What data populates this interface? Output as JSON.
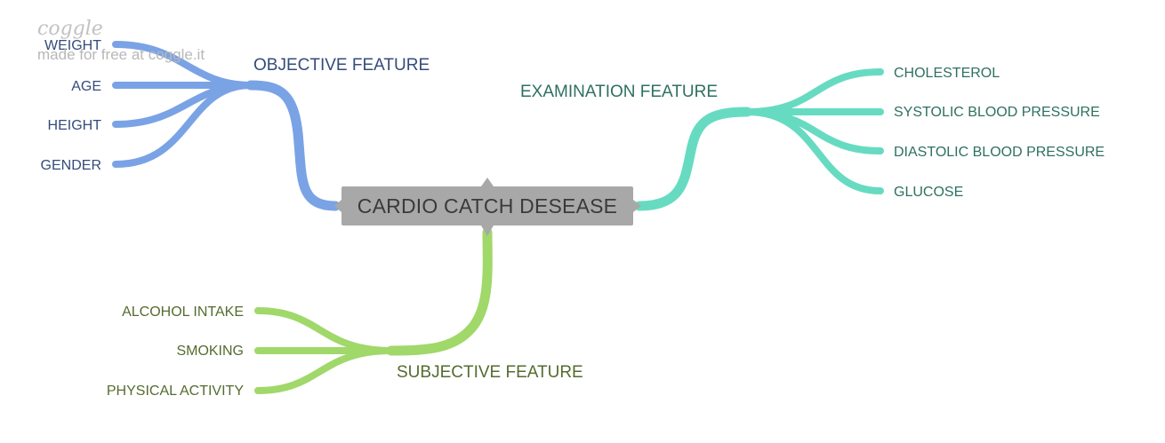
{
  "center": {
    "label": "CARDIO CATCH DESEASE"
  },
  "watermark": {
    "logo": "coggle",
    "text": "made for free at coggle.it"
  },
  "colors": {
    "objective": "#7aa3e5",
    "objective_text": "#344c7a",
    "examination": "#67dbc1",
    "examination_text": "#2e7060",
    "subjective": "#a0d86a",
    "subjective_text": "#556b2f",
    "center_bg": "#a8a8a8",
    "center_text": "#3a3a3a"
  },
  "branches": {
    "objective": {
      "label": "OBJECTIVE FEATURE",
      "children": [
        "WEIGHT",
        "AGE",
        "HEIGHT",
        "GENDER"
      ]
    },
    "examination": {
      "label": "EXAMINATION FEATURE",
      "children": [
        "CHOLESTEROL",
        "SYSTOLIC BLOOD PRESSURE",
        "DIASTOLIC BLOOD PRESSURE",
        "GLUCOSE"
      ]
    },
    "subjective": {
      "label": "SUBJECTIVE FEATURE",
      "children": [
        "ALCOHOL INTAKE",
        "SMOKING",
        "PHYSICAL ACTIVITY"
      ]
    }
  }
}
